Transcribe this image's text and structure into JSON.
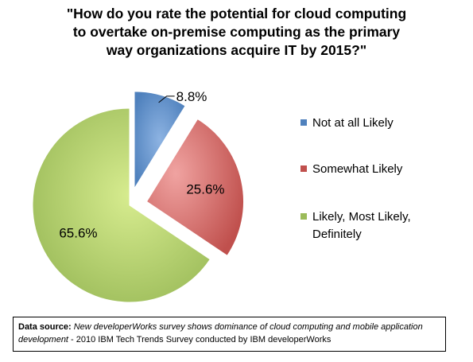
{
  "chart_data": {
    "type": "pie",
    "title_lines": [
      "\"How do you rate the potential for cloud computing",
      "to overtake on-premise computing as the primary",
      "way organizations acquire IT by 2015?\""
    ],
    "slices": [
      {
        "name": "Not at all Likely",
        "value": 8.8,
        "label": "8.8%",
        "color": "#4f81bd",
        "exploded": true
      },
      {
        "name": "Somewhat Likely",
        "value": 25.6,
        "label": "25.6%",
        "color": "#c0504d",
        "exploded": true
      },
      {
        "name": "Likely, Most Likely,",
        "name2": "Definitely",
        "value": 65.6,
        "label": "65.6%",
        "color": "#9bbb59",
        "exploded": false
      }
    ],
    "legend_position": "right"
  },
  "source": {
    "prefix": "Data source: ",
    "italic": "New developerWorks survey shows dominance of cloud computing and mobile application development",
    "suffix": " - 2010 IBM Tech Trends Survey conducted by IBM developerWorks"
  }
}
